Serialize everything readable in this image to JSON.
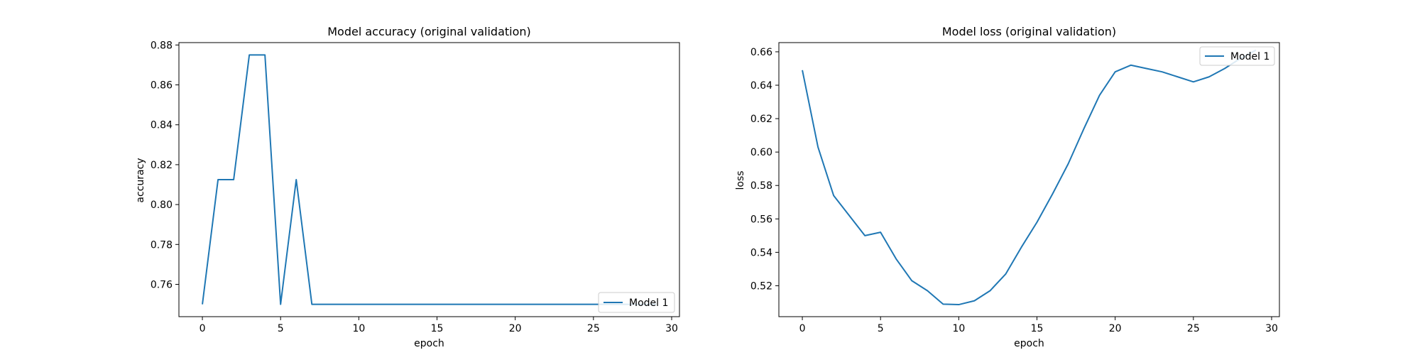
{
  "colors": {
    "series": "#1f77b4",
    "axes": "#000000",
    "background": "#ffffff",
    "legend_border": "#cccccc"
  },
  "chart_data": [
    {
      "type": "line",
      "title": "Model accuracy (original validation)",
      "xlabel": "epoch",
      "ylabel": "accuracy",
      "xlim": [
        -1.5,
        30.5
      ],
      "ylim": [
        0.7438,
        0.8812
      ],
      "xticks": [
        0,
        5,
        10,
        15,
        20,
        25,
        30
      ],
      "yticks": [
        0.76,
        0.78,
        0.8,
        0.82,
        0.84,
        0.86,
        0.88
      ],
      "xtick_labels": [
        "0",
        "5",
        "10",
        "15",
        "20",
        "25",
        "30"
      ],
      "ytick_labels": [
        "0.76",
        "0.78",
        "0.80",
        "0.82",
        "0.84",
        "0.86",
        "0.88"
      ],
      "grid": false,
      "legend": {
        "position": "lower right",
        "entries": [
          "Model 1"
        ]
      },
      "series": [
        {
          "name": "Model 1",
          "x": [
            0,
            1,
            2,
            3,
            4,
            5,
            6,
            7,
            8,
            9,
            10,
            11,
            12,
            13,
            14,
            15,
            16,
            17,
            18,
            19,
            20,
            21,
            22,
            23,
            24,
            25,
            26,
            27,
            28,
            29
          ],
          "values": [
            0.75,
            0.8125,
            0.8125,
            0.875,
            0.875,
            0.75,
            0.8125,
            0.75,
            0.75,
            0.75,
            0.75,
            0.75,
            0.75,
            0.75,
            0.75,
            0.75,
            0.75,
            0.75,
            0.75,
            0.75,
            0.75,
            0.75,
            0.75,
            0.75,
            0.75,
            0.75,
            0.75,
            0.75,
            0.75,
            0.75
          ]
        }
      ]
    },
    {
      "type": "line",
      "title": "Model loss (original validation)",
      "xlabel": "epoch",
      "ylabel": "loss",
      "xlim": [
        -1.5,
        30.5
      ],
      "ylim": [
        0.5015,
        0.6655
      ],
      "xticks": [
        0,
        5,
        10,
        15,
        20,
        25,
        30
      ],
      "yticks": [
        0.52,
        0.54,
        0.56,
        0.58,
        0.6,
        0.62,
        0.64,
        0.66
      ],
      "xtick_labels": [
        "0",
        "5",
        "10",
        "15",
        "20",
        "25",
        "30"
      ],
      "ytick_labels": [
        "0.52",
        "0.54",
        "0.56",
        "0.58",
        "0.60",
        "0.62",
        "0.64",
        "0.66"
      ],
      "grid": false,
      "legend": {
        "position": "upper right",
        "entries": [
          "Model 1"
        ]
      },
      "series": [
        {
          "name": "Model 1",
          "x": [
            0,
            1,
            2,
            3,
            4,
            5,
            6,
            7,
            8,
            9,
            10,
            11,
            12,
            13,
            14,
            15,
            16,
            17,
            18,
            19,
            20,
            21,
            22,
            23,
            24,
            25,
            26,
            27,
            28,
            29
          ],
          "values": [
            0.649,
            0.603,
            0.574,
            0.562,
            0.55,
            0.552,
            0.536,
            0.523,
            0.517,
            0.509,
            0.5087,
            0.511,
            0.517,
            0.527,
            0.543,
            0.558,
            0.575,
            0.593,
            0.614,
            0.634,
            0.648,
            0.652,
            0.65,
            0.648,
            0.645,
            0.642,
            0.645,
            0.65,
            0.656,
            0.661
          ]
        }
      ]
    }
  ]
}
